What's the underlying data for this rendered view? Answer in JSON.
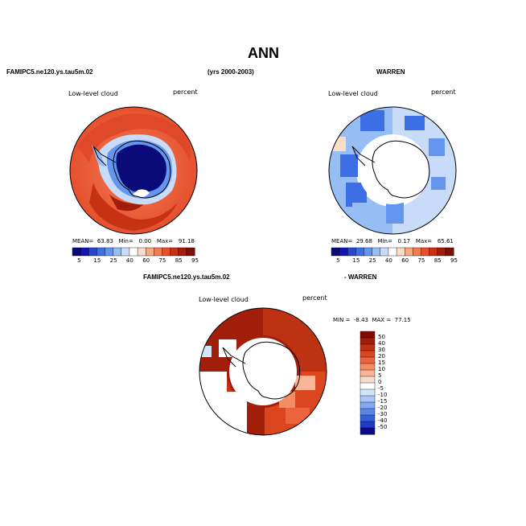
{
  "figure": {
    "title": "ANN",
    "case_label": "FAMIPC5.ne120.ys.tau5m.02",
    "years_label": "(yrs 2000-2003)",
    "obs_label": "WARREN",
    "diff_case_label": "FAMIPC5.ne120.ys.tau5m.02",
    "diff_obs_label": "- WARREN"
  },
  "panels": {
    "model": {
      "variable": "Low-level cloud",
      "units": "percent",
      "mean_label": "MEAN=",
      "mean": "63.83",
      "min_label": "Min=",
      "min": "0.00",
      "max_label": "Max=",
      "max": "91.18"
    },
    "obs": {
      "variable": "Low-level cloud",
      "units": "percent",
      "mean_label": "MEAN=",
      "mean": "29.68",
      "min_label": "Min=",
      "min": "0.17",
      "max_label": "Max=",
      "max": "65.61"
    },
    "diff": {
      "variable": "Low-level cloud",
      "units": "percent",
      "min_label": "MIN =",
      "min": "-8.43",
      "max_label": "MAX =",
      "max": "77.15"
    }
  },
  "colorbars": {
    "field": {
      "labels": [
        "5",
        "15",
        "25",
        "40",
        "60",
        "75",
        "85",
        "95"
      ],
      "colors": [
        "#0a0a78",
        "#1414b4",
        "#2846d2",
        "#3c6ee6",
        "#6496f0",
        "#96bef5",
        "#c8dcfa",
        "#ffffff",
        "#fadcc8",
        "#f5aa82",
        "#f07d55",
        "#e6502d",
        "#c83214",
        "#a01e0a",
        "#7d0f05"
      ]
    },
    "diff": {
      "labels": [
        "50",
        "40",
        "30",
        "20",
        "15",
        "10",
        "5",
        "0",
        "-5",
        "-10",
        "-15",
        "-20",
        "-30",
        "-40",
        "-50"
      ],
      "colors": [
        "#820a05",
        "#a01e0a",
        "#be3214",
        "#dc461e",
        "#eb643c",
        "#f58c64",
        "#fab496",
        "#fadccd",
        "#ffffff",
        "#d2e6fa",
        "#aac8f5",
        "#82aaf0",
        "#5a87e6",
        "#325fdc",
        "#1e3cc8",
        "#0a0a8c"
      ]
    }
  }
}
